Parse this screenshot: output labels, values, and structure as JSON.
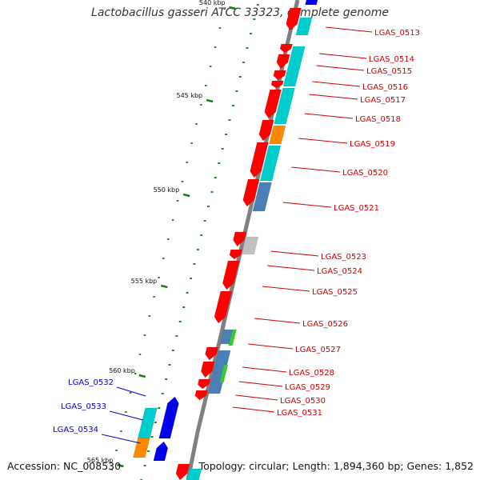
{
  "title": "Lactobacillus gasseri ATCC 33323, complete genome",
  "accession": "Accession: NC_008530",
  "topology": "Topology: circular; Length: 1,894,360 bp; Genes: 1,852",
  "colors": {
    "forward_gene": "#ff0000",
    "reverse_gene": "#0000ee",
    "cds_cyan": "#00cccc",
    "cds_orange": "#ff8800",
    "cds_steelblue": "#4a7fb8",
    "cds_grey": "#c0c0c0",
    "cds_green": "#33cc33",
    "backbone": "#808080",
    "minor_tick": "#228b22",
    "major_tick": "#1a7a1a",
    "label_red": "#cc0000",
    "label_blue": "#0000cc"
  },
  "ticks": [
    {
      "label": "540 kbp"
    },
    {
      "label": "545 kbp"
    },
    {
      "label": "550 kbp"
    },
    {
      "label": "555 kbp"
    },
    {
      "label": "560 kbp"
    },
    {
      "label": "565 kbp"
    }
  ],
  "genes_right": [
    {
      "label": "LGAS_0513"
    },
    {
      "label": "LGAS_0514"
    },
    {
      "label": "LGAS_0515"
    },
    {
      "label": "LGAS_0516"
    },
    {
      "label": "LGAS_0517"
    },
    {
      "label": "LGAS_0518"
    },
    {
      "label": "LGAS_0519"
    },
    {
      "label": "LGAS_0520"
    },
    {
      "label": "LGAS_0521"
    },
    {
      "label": "LGAS_0523"
    },
    {
      "label": "LGAS_0524"
    },
    {
      "label": "LGAS_0525"
    },
    {
      "label": "LGAS_0526"
    },
    {
      "label": "LGAS_0527"
    },
    {
      "label": "LGAS_0528"
    },
    {
      "label": "LGAS_0529"
    },
    {
      "label": "LGAS_0530"
    },
    {
      "label": "LGAS_0531"
    }
  ],
  "genes_left": [
    {
      "label": "LGAS_0532"
    },
    {
      "label": "LGAS_0533"
    },
    {
      "label": "LGAS_0534"
    }
  ]
}
